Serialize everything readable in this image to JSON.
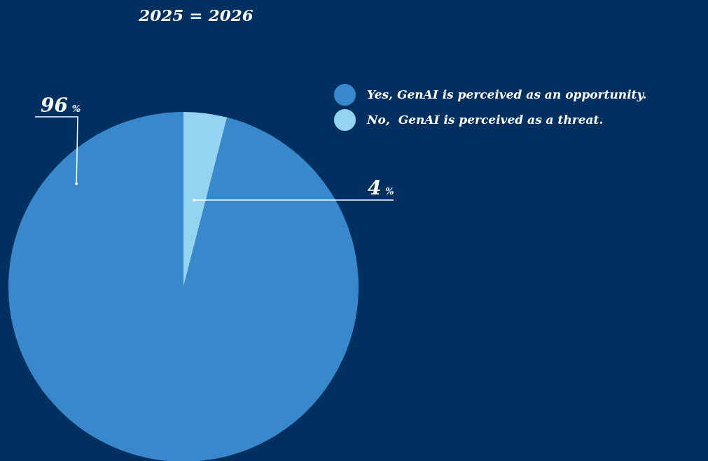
{
  "chart_data": {
    "type": "pie",
    "title": "2025 = 2026",
    "categories": [
      "Yes, GenAI is perceived as an opportunity.",
      "No,  GenAI is perceived as a threat."
    ],
    "values": [
      96,
      4
    ],
    "colors": [
      "#3889cb",
      "#95d3f3"
    ],
    "value_labels": [
      "96 %",
      "4 %"
    ],
    "legend": "top right"
  }
}
